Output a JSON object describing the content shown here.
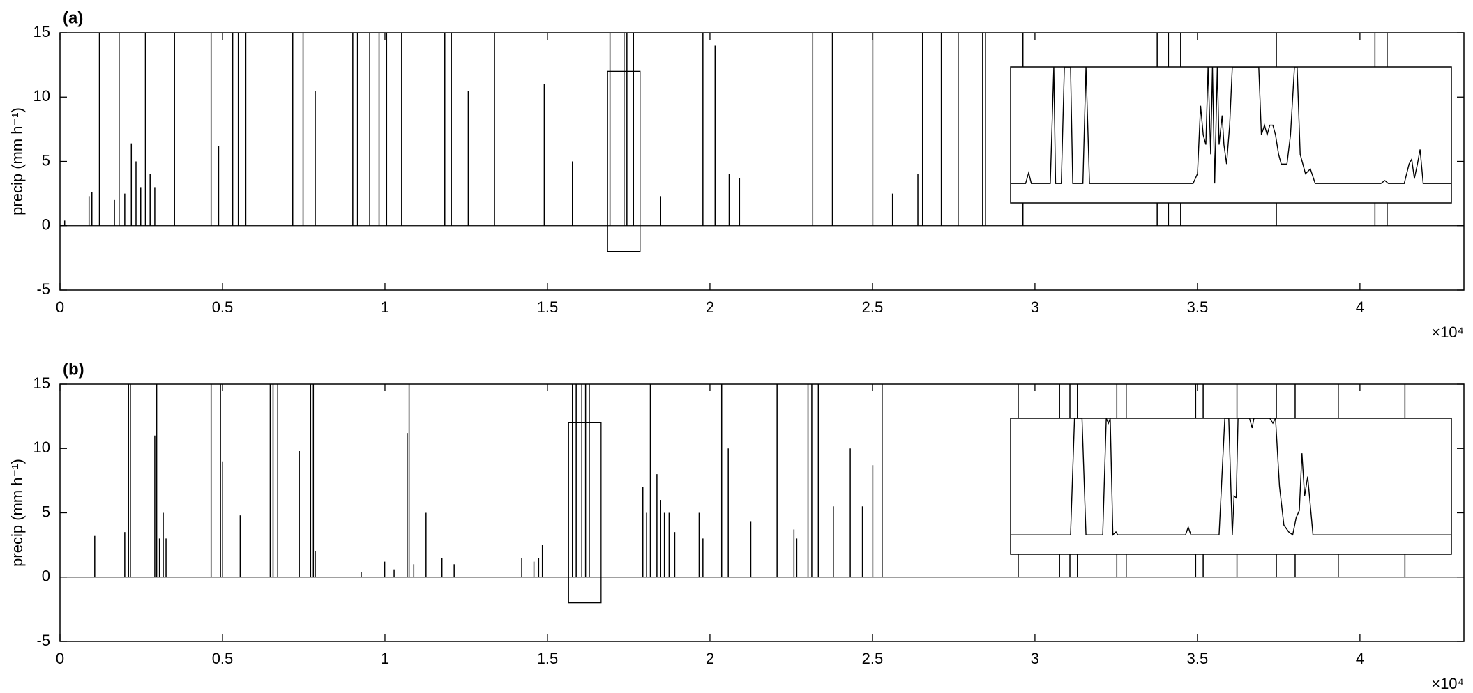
{
  "chart_data": [
    {
      "type": "stem",
      "label": "(a)",
      "ylabel": "precip (mm h⁻¹)",
      "x_multiplier": "×10⁴",
      "color": "#000000",
      "xlim": [
        0,
        43200
      ],
      "ylim": [
        -5,
        15
      ],
      "xticks": [
        0,
        {
          "value": 5000,
          "label": "0.5"
        },
        {
          "value": 10000,
          "label": "1"
        },
        {
          "value": 15000,
          "label": "1.5"
        },
        {
          "value": 20000,
          "label": "2"
        },
        {
          "value": 25000,
          "label": "2.5"
        },
        {
          "value": 30000,
          "label": "3"
        },
        {
          "value": 35000,
          "label": "3.5"
        },
        {
          "value": 40000,
          "label": "4"
        }
      ],
      "yticks": [
        -5,
        0,
        5,
        10,
        15
      ],
      "x": [
        144,
        895,
        982,
        1213,
        1675,
        1820,
        1993,
        2195,
        2339,
        2484,
        2628,
        2773,
        2917,
        3524,
        4650,
        4881,
        5314,
        5487,
        5718,
        7162,
        7480,
        7855,
        9010,
        9155,
        9530,
        9819,
        10050,
        10512,
        11841,
        12043,
        12563,
        13371,
        14902,
        15768,
        16924,
        17357,
        17444,
        17646,
        18483,
        19783,
        20158,
        20591,
        20909,
        23162,
        23768,
        25010,
        25617,
        26397,
        26541,
        27118,
        27638,
        28389,
        28476,
        29631,
        33761,
        34108,
        34483,
        37428,
        40461,
        40837
      ],
      "values": [
        0.4,
        2.3,
        2.6,
        15,
        2,
        15,
        2.5,
        6.4,
        5,
        3,
        15,
        4,
        3,
        15,
        15,
        6.2,
        15,
        15,
        15,
        15,
        15,
        10.5,
        15,
        15,
        15,
        15,
        15,
        15,
        15,
        15,
        10.5,
        15,
        11,
        5,
        15,
        15,
        15,
        15,
        2.3,
        15,
        14,
        4,
        3.7,
        15,
        15,
        15,
        2.5,
        4,
        15,
        15,
        15,
        15,
        15,
        15,
        15,
        15,
        15,
        15,
        15,
        15
      ],
      "inset": {
        "type": "line",
        "xlim": [
          16850,
          17850
        ],
        "ylim": [
          -2,
          12
        ],
        "x": [
          16850,
          16884,
          16891,
          16897,
          16940,
          16948,
          16952,
          16965,
          16972,
          16986,
          16991,
          17014,
          17021,
          17029,
          17264,
          17274,
          17281,
          17287,
          17293,
          17298,
          17304,
          17308,
          17313,
          17319,
          17323,
          17330,
          17334,
          17340,
          17347,
          17353,
          17413,
          17419,
          17426,
          17432,
          17438,
          17445,
          17451,
          17458,
          17464,
          17477,
          17485,
          17494,
          17500,
          17507,
          17519,
          17530,
          17541,
          17690,
          17699,
          17707,
          17743,
          17754,
          17760,
          17766,
          17773,
          17779,
          17786,
          17850
        ],
        "values": [
          0,
          0,
          1.1,
          0,
          0,
          12,
          0,
          0,
          12,
          12,
          0,
          0,
          12,
          0,
          0,
          1,
          8,
          5,
          4,
          12,
          3,
          12,
          0,
          12,
          4,
          7,
          4,
          2,
          6,
          12,
          12,
          5,
          6,
          5,
          6,
          6,
          5,
          3,
          2,
          2,
          5,
          12,
          12,
          3,
          1,
          1.5,
          0,
          0,
          0.3,
          0,
          0,
          2,
          2.5,
          0.5,
          2,
          3.5,
          0,
          0
        ]
      }
    },
    {
      "type": "stem",
      "label": "(b)",
      "ylabel": "precip (mm h⁻¹)",
      "x_multiplier": "×10⁴",
      "color": "#000000",
      "xlim": [
        0,
        43200
      ],
      "ylim": [
        -5,
        15
      ],
      "xticks": [
        0,
        {
          "value": 5000,
          "label": "0.5"
        },
        {
          "value": 10000,
          "label": "1"
        },
        {
          "value": 15000,
          "label": "1.5"
        },
        {
          "value": 20000,
          "label": "2"
        },
        {
          "value": 25000,
          "label": "2.5"
        },
        {
          "value": 30000,
          "label": "3"
        },
        {
          "value": 35000,
          "label": "3.5"
        },
        {
          "value": 40000,
          "label": "4"
        }
      ],
      "yticks": [
        -5,
        0,
        5,
        10,
        15
      ],
      "x": [
        1069,
        1993,
        2108,
        2166,
        2917,
        2975,
        3061,
        3177,
        3263,
        4650,
        4938,
        4996,
        5545,
        6469,
        6556,
        6700,
        7364,
        7711,
        7797,
        7855,
        9270,
        9992,
        10281,
        10685,
        10743,
        10887,
        11263,
        11754,
        12129,
        14208,
        14584,
        14729,
        14844,
        15768,
        15884,
        16057,
        16173,
        16288,
        17935,
        18050,
        18166,
        18368,
        18483,
        18599,
        18743,
        18916,
        19667,
        19783,
        20360,
        20563,
        21256,
        22065,
        22584,
        22671,
        23017,
        23133,
        23335,
        23797,
        24317,
        24692,
        25010,
        25299,
        29486,
        30757,
        31075,
        31306,
        32519,
        32808,
        34945,
        35176,
        36216,
        37428,
        38006,
        39334,
        41384
      ],
      "values": [
        3.2,
        3.5,
        15,
        15,
        11,
        15,
        3,
        5,
        3,
        15,
        15,
        9,
        4.8,
        15,
        15,
        15,
        9.8,
        15,
        15,
        2,
        0.4,
        1.2,
        0.6,
        11.2,
        15,
        1,
        5,
        1.5,
        1,
        1.5,
        1.2,
        1.5,
        2.5,
        15,
        15,
        15,
        15,
        15,
        7,
        5,
        15,
        8,
        6,
        5,
        5,
        3.5,
        5,
        3,
        15,
        10,
        4.3,
        15,
        3.7,
        3,
        15,
        15,
        15,
        5.5,
        10,
        5.5,
        8.7,
        15,
        15,
        15,
        15,
        15,
        15,
        15,
        15,
        15,
        15,
        15,
        15,
        15,
        15
      ],
      "inset": {
        "type": "line",
        "xlim": [
          15650,
          16650
        ],
        "ylim": [
          -2,
          12
        ],
        "x": [
          15650,
          15786,
          15795,
          15812,
          15821,
          15850,
          15859,
          15867,
          15872,
          15876,
          15882,
          15889,
          15893,
          16047,
          16053,
          16059,
          16123,
          16136,
          16145,
          16153,
          16157,
          16162,
          16166,
          16192,
          16198,
          16202,
          16238,
          16245,
          16251,
          16260,
          16270,
          16281,
          16290,
          16298,
          16305,
          16311,
          16317,
          16324,
          16330,
          16336,
          16650
        ],
        "values": [
          0,
          0,
          12,
          12,
          0,
          0,
          0,
          12,
          11.5,
          12,
          0,
          0.3,
          0,
          0,
          0.8,
          0,
          0,
          12,
          12,
          0,
          4,
          3.8,
          12,
          12,
          11,
          12,
          12,
          11.5,
          12,
          5,
          1,
          0.3,
          0,
          1.8,
          2.5,
          8.4,
          4,
          6,
          3,
          0,
          0
        ]
      }
    }
  ]
}
